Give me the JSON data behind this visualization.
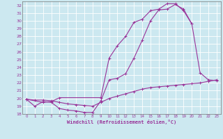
{
  "xlabel": "Windchill (Refroidissement éolien,°C)",
  "bg_color": "#cce8f0",
  "grid_color": "#ffffff",
  "line_color": "#993399",
  "xlim": [
    -0.5,
    23.5
  ],
  "ylim": [
    18,
    32.5
  ],
  "yticks": [
    18,
    19,
    20,
    21,
    22,
    23,
    24,
    25,
    26,
    27,
    28,
    29,
    30,
    31,
    32
  ],
  "xticks": [
    0,
    1,
    2,
    3,
    4,
    5,
    6,
    7,
    8,
    9,
    10,
    11,
    12,
    13,
    14,
    15,
    16,
    17,
    18,
    19,
    20,
    21,
    22,
    23
  ],
  "curve1_x": [
    0,
    1,
    2,
    3,
    4,
    5,
    6,
    7,
    8,
    9,
    10,
    11,
    12,
    13,
    14,
    15,
    16,
    17,
    18,
    19,
    20,
    21,
    22,
    23
  ],
  "curve1_y": [
    19.9,
    19.8,
    19.8,
    19.7,
    19.5,
    19.3,
    19.2,
    19.1,
    19.0,
    19.5,
    20.0,
    20.3,
    20.6,
    20.9,
    21.2,
    21.4,
    21.5,
    21.6,
    21.7,
    21.8,
    21.9,
    22.0,
    22.2,
    22.4
  ],
  "curve2_x": [
    0,
    1,
    2,
    3,
    4,
    5,
    6,
    7,
    8,
    9,
    10,
    11,
    12,
    13,
    14,
    15,
    16,
    17,
    18,
    19,
    20
  ],
  "curve2_y": [
    19.9,
    19.0,
    19.6,
    19.5,
    18.7,
    18.5,
    18.4,
    18.2,
    18.2,
    19.7,
    22.4,
    22.6,
    23.2,
    25.2,
    27.5,
    30.0,
    31.4,
    31.5,
    32.1,
    31.5,
    29.6
  ],
  "curve3_x": [
    0,
    2,
    3,
    4,
    9,
    10,
    11,
    12,
    13,
    14,
    15,
    16,
    17,
    18,
    19,
    20,
    21,
    22,
    23
  ],
  "curve3_y": [
    19.9,
    19.5,
    19.6,
    20.1,
    20.1,
    25.2,
    26.8,
    28.0,
    29.8,
    30.2,
    31.3,
    31.5,
    32.2,
    32.2,
    31.3,
    29.6,
    23.3,
    22.4,
    22.3
  ]
}
